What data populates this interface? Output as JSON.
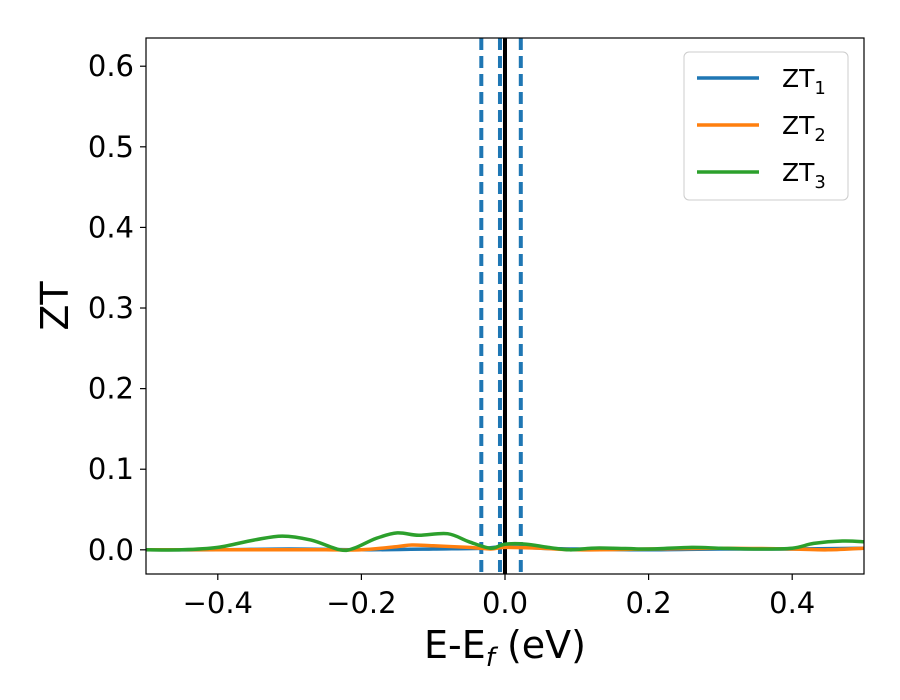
{
  "chart_data": {
    "type": "line",
    "xlabel": "E-E",
    "xlabel_sub": "f",
    "xlabel_unit": " (eV)",
    "ylabel": "ZT",
    "xlim": [
      -0.5,
      0.5
    ],
    "ylim": [
      -0.03,
      0.635
    ],
    "xticks": [
      -0.4,
      -0.2,
      0.0,
      0.2,
      0.4
    ],
    "xtick_labels": [
      "−0.4",
      "−0.2",
      "0.0",
      "0.2",
      "0.4"
    ],
    "yticks": [
      0.0,
      0.1,
      0.2,
      0.3,
      0.4,
      0.5,
      0.6
    ],
    "ytick_labels": [
      "0.0",
      "0.1",
      "0.2",
      "0.3",
      "0.4",
      "0.5",
      "0.6"
    ],
    "grid": false,
    "legend_position": "top-right",
    "vlines": [
      {
        "x": 0.0,
        "style": "solid",
        "color": "#000000"
      },
      {
        "x": -0.033,
        "style": "dashed",
        "color": "#1f77b4"
      },
      {
        "x": -0.007,
        "style": "dashed",
        "color": "#1f77b4"
      },
      {
        "x": 0.022,
        "style": "dashed",
        "color": "#1f77b4"
      }
    ],
    "series": [
      {
        "name": "ZT",
        "sub": "1",
        "color": "#1f77b4",
        "x": [
          -0.5,
          -0.4,
          -0.3,
          -0.2,
          -0.1,
          -0.03,
          0.0,
          0.05,
          0.1,
          0.2,
          0.3,
          0.4,
          0.5
        ],
        "y": [
          0.0,
          0.0,
          0.001,
          0.0,
          0.001,
          0.002,
          0.004,
          0.002,
          0.001,
          0.0,
          0.001,
          0.001,
          0.002
        ]
      },
      {
        "name": "ZT",
        "sub": "2",
        "color": "#ff7f0e",
        "x": [
          -0.5,
          -0.4,
          -0.3,
          -0.25,
          -0.2,
          -0.15,
          -0.13,
          -0.1,
          -0.05,
          -0.02,
          0.0,
          0.05,
          0.1,
          0.2,
          0.3,
          0.4,
          0.45,
          0.5
        ],
        "y": [
          0.0,
          0.0,
          0.0,
          0.0,
          0.0,
          0.004,
          0.006,
          0.005,
          0.003,
          0.001,
          0.003,
          0.002,
          0.0,
          0.001,
          0.002,
          0.001,
          0.0,
          0.002
        ]
      },
      {
        "name": "ZT",
        "sub": "3",
        "color": "#2ca02c",
        "x": [
          -0.5,
          -0.45,
          -0.4,
          -0.35,
          -0.31,
          -0.27,
          -0.23,
          -0.21,
          -0.18,
          -0.15,
          -0.12,
          -0.08,
          -0.05,
          -0.02,
          0.0,
          0.03,
          0.06,
          0.09,
          0.12,
          0.15,
          0.2,
          0.26,
          0.3,
          0.35,
          0.4,
          0.43,
          0.47,
          0.5
        ],
        "y": [
          0.0,
          0.0,
          0.003,
          0.012,
          0.017,
          0.012,
          0.0,
          0.002,
          0.014,
          0.021,
          0.018,
          0.02,
          0.01,
          0.002,
          0.007,
          0.007,
          0.003,
          0.0,
          0.002,
          0.002,
          0.001,
          0.003,
          0.002,
          0.001,
          0.002,
          0.008,
          0.011,
          0.01
        ]
      }
    ]
  }
}
